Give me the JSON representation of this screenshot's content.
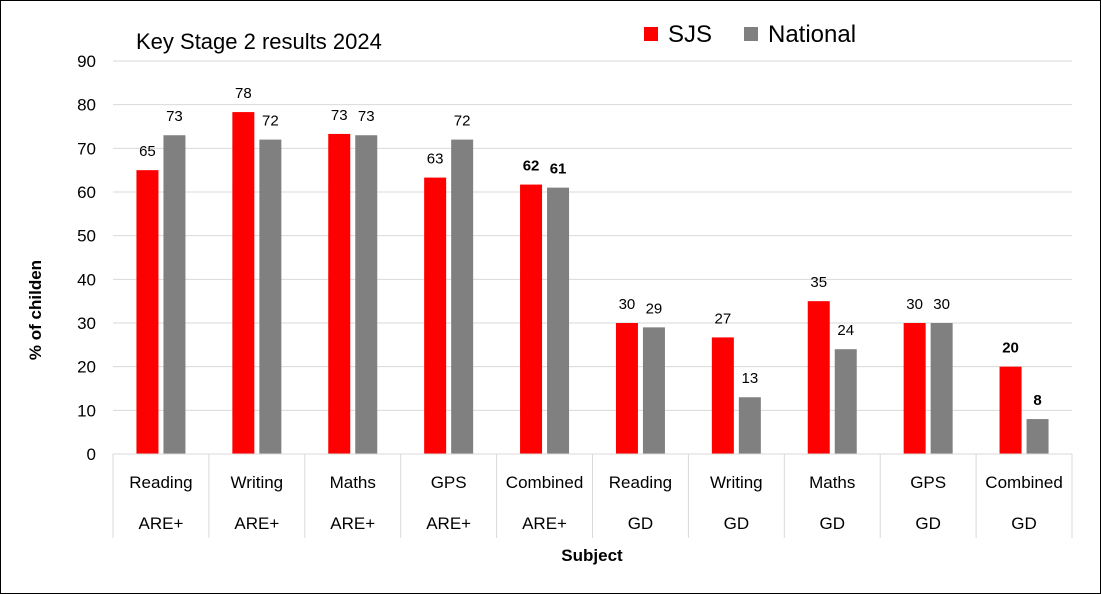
{
  "chart_data": {
    "type": "bar",
    "title": "Key Stage 2 results 2024",
    "xlabel": "Subject",
    "ylabel": "% of childen",
    "ylim": [
      0,
      90
    ],
    "yticks": [
      0,
      10,
      20,
      30,
      40,
      50,
      60,
      70,
      80,
      90
    ],
    "grid": true,
    "legend_position": "top-right",
    "categories": [
      {
        "line1": "Reading",
        "line2": "ARE+"
      },
      {
        "line1": "Writing",
        "line2": "ARE+"
      },
      {
        "line1": "Maths",
        "line2": "ARE+"
      },
      {
        "line1": "GPS",
        "line2": "ARE+"
      },
      {
        "line1": "Combined",
        "line2": "ARE+"
      },
      {
        "line1": "Reading",
        "line2": "GD"
      },
      {
        "line1": "Writing",
        "line2": "GD"
      },
      {
        "line1": "Maths",
        "line2": "GD"
      },
      {
        "line1": "GPS",
        "line2": "GD"
      },
      {
        "line1": "Combined",
        "line2": "GD"
      }
    ],
    "series": [
      {
        "name": "SJS",
        "color": "#ff0000",
        "values": [
          65,
          78.3,
          73.3,
          63.3,
          61.7,
          30,
          26.7,
          35,
          30,
          20
        ],
        "labels": [
          "65",
          "78",
          "73",
          "63",
          "62",
          "30",
          "27",
          "35",
          "30",
          "20"
        ],
        "bold_labels": [
          false,
          false,
          false,
          false,
          true,
          false,
          false,
          false,
          false,
          true
        ]
      },
      {
        "name": "National",
        "color": "#808080",
        "values": [
          73,
          72,
          73,
          72,
          61,
          29,
          13,
          24,
          30,
          8
        ],
        "labels": [
          "73",
          "72",
          "73",
          "72",
          "61",
          "29",
          "13",
          "24",
          "30",
          "8"
        ],
        "bold_labels": [
          false,
          false,
          false,
          false,
          true,
          false,
          false,
          false,
          false,
          true
        ]
      }
    ],
    "gridline_color": "#d9d9d9"
  }
}
